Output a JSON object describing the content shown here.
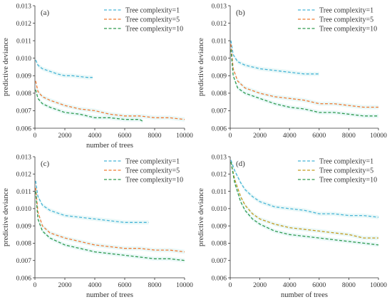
{
  "colors": {
    "complexity_1": "#46b4d6",
    "complexity_5": "#f07a32",
    "complexity_5_alt": "#c49a1c",
    "complexity_10": "#2e9a4e",
    "axis": "#333333",
    "band": "#d8f3f3"
  },
  "chart_data": [
    {
      "type": "line",
      "panel_label": "(a)",
      "xlabel": "number of trees",
      "ylabel": "predictive deviance",
      "xlim": [
        0,
        10000
      ],
      "ylim": [
        0.006,
        0.013
      ],
      "xticks": [
        0,
        2000,
        4000,
        6000,
        8000,
        10000
      ],
      "yticks": [
        0.006,
        0.007,
        0.008,
        0.009,
        0.01,
        0.011,
        0.012,
        0.013
      ],
      "grid": false,
      "legend": "top-right",
      "series": [
        {
          "name": "Tree complexity=1",
          "color_key": "complexity_1",
          "x": [
            50,
            200,
            500,
            1000,
            1500,
            2000,
            2500,
            3000,
            3500,
            3850
          ],
          "y": [
            0.0099,
            0.0096,
            0.0094,
            0.00925,
            0.0091,
            0.009,
            0.009,
            0.00895,
            0.0089,
            0.0089
          ]
        },
        {
          "name": "Tree complexity=5",
          "color_key": "complexity_5",
          "x": [
            50,
            200,
            500,
            1000,
            2000,
            3000,
            4000,
            5000,
            6000,
            7000,
            8000,
            9000,
            10000
          ],
          "y": [
            0.0087,
            0.0081,
            0.0078,
            0.0076,
            0.0073,
            0.0071,
            0.007,
            0.0068,
            0.0067,
            0.0067,
            0.0066,
            0.0066,
            0.0065
          ]
        },
        {
          "name": "Tree complexity=10",
          "color_key": "complexity_10",
          "x": [
            50,
            200,
            500,
            1000,
            2000,
            3000,
            4000,
            5000,
            6000,
            7000,
            7200
          ],
          "y": [
            0.0082,
            0.0077,
            0.0074,
            0.0072,
            0.0069,
            0.0068,
            0.0066,
            0.0066,
            0.0065,
            0.0065,
            0.0064
          ]
        }
      ]
    },
    {
      "type": "line",
      "panel_label": "(b)",
      "xlabel": "",
      "ylabel": "predictive deviance",
      "xlim": [
        0,
        10000
      ],
      "ylim": [
        0.006,
        0.013
      ],
      "xticks": [
        0,
        2000,
        4000,
        6000,
        8000,
        10000
      ],
      "yticks": [
        0.006,
        0.007,
        0.008,
        0.009,
        0.01,
        0.011,
        0.012,
        0.013
      ],
      "grid": false,
      "legend": "top-right",
      "series": [
        {
          "name": "Tree complexity=1",
          "color_key": "complexity_1",
          "x": [
            50,
            200,
            500,
            1000,
            1500,
            2000,
            3000,
            4000,
            5000,
            6000
          ],
          "y": [
            0.011,
            0.0102,
            0.0098,
            0.0096,
            0.0095,
            0.0094,
            0.0093,
            0.0092,
            0.0091,
            0.0091
          ]
        },
        {
          "name": "Tree complexity=5",
          "color_key": "complexity_5",
          "x": [
            50,
            200,
            500,
            1000,
            2000,
            3000,
            4000,
            5000,
            6000,
            7000,
            8000,
            9000,
            10000
          ],
          "y": [
            0.0108,
            0.0094,
            0.0087,
            0.0083,
            0.008,
            0.0078,
            0.0077,
            0.0076,
            0.0074,
            0.0074,
            0.0073,
            0.0072,
            0.0072
          ]
        },
        {
          "name": "Tree complexity=10",
          "color_key": "complexity_10",
          "x": [
            50,
            200,
            500,
            1000,
            2000,
            3000,
            4000,
            5000,
            6000,
            7000,
            8000,
            9000,
            10000
          ],
          "y": [
            0.0105,
            0.009,
            0.0083,
            0.008,
            0.0077,
            0.0074,
            0.0072,
            0.0071,
            0.0069,
            0.0069,
            0.0068,
            0.0067,
            0.0067
          ]
        }
      ]
    },
    {
      "type": "line",
      "panel_label": "(c)",
      "xlabel": "number of trees",
      "ylabel": "predictive deviance",
      "xlim": [
        0,
        10000
      ],
      "ylim": [
        0.006,
        0.013
      ],
      "xticks": [
        0,
        2000,
        4000,
        6000,
        8000,
        10000
      ],
      "yticks": [
        0.006,
        0.007,
        0.008,
        0.009,
        0.01,
        0.011,
        0.012,
        0.013
      ],
      "grid": false,
      "legend": "top-right",
      "series": [
        {
          "name": "Tree complexity=1",
          "color_key": "complexity_1",
          "x": [
            50,
            200,
            500,
            1000,
            2000,
            3000,
            4000,
            5000,
            6000,
            7000,
            7600
          ],
          "y": [
            0.0116,
            0.0107,
            0.0102,
            0.0099,
            0.0096,
            0.0095,
            0.0094,
            0.0093,
            0.0092,
            0.0092,
            0.0092
          ]
        },
        {
          "name": "Tree complexity=5",
          "color_key": "complexity_5",
          "x": [
            50,
            200,
            500,
            1000,
            2000,
            3000,
            4000,
            5000,
            6000,
            7000,
            8000,
            9000,
            10000
          ],
          "y": [
            0.0112,
            0.0098,
            0.009,
            0.0086,
            0.0083,
            0.0081,
            0.0079,
            0.0078,
            0.0077,
            0.0077,
            0.0076,
            0.0076,
            0.0075
          ]
        },
        {
          "name": "Tree complexity=10",
          "color_key": "complexity_10",
          "x": [
            50,
            200,
            500,
            1000,
            2000,
            3000,
            4000,
            5000,
            6000,
            7000,
            8000,
            9000,
            10000
          ],
          "y": [
            0.011,
            0.0094,
            0.0087,
            0.0083,
            0.0079,
            0.0077,
            0.0075,
            0.0074,
            0.0073,
            0.0072,
            0.0071,
            0.0071,
            0.007
          ]
        }
      ]
    },
    {
      "type": "line",
      "panel_label": "(d)",
      "xlabel": "number of trees",
      "ylabel": "predictive deviance",
      "xlim": [
        0,
        10000
      ],
      "ylim": [
        0.006,
        0.013
      ],
      "xticks": [
        0,
        2000,
        4000,
        6000,
        8000,
        10000
      ],
      "yticks": [
        0.006,
        0.007,
        0.008,
        0.009,
        0.01,
        0.011,
        0.012,
        0.013
      ],
      "grid": false,
      "legend": "top-right",
      "series": [
        {
          "name": "Tree complexity=1",
          "color_key": "complexity_1",
          "x": [
            50,
            300,
            700,
            1000,
            1500,
            2000,
            3000,
            4000,
            5000,
            6000,
            7000,
            8000,
            9000,
            10000
          ],
          "y": [
            0.0128,
            0.0122,
            0.0115,
            0.0111,
            0.0107,
            0.0104,
            0.0101,
            0.01,
            0.0099,
            0.0097,
            0.0097,
            0.0096,
            0.0096,
            0.0095
          ]
        },
        {
          "name": "Tree complexity=5",
          "color_key": "complexity_5_alt",
          "x": [
            50,
            300,
            700,
            1000,
            1500,
            2000,
            3000,
            4000,
            5000,
            6000,
            7000,
            8000,
            9000,
            10000
          ],
          "y": [
            0.0127,
            0.0117,
            0.0107,
            0.0102,
            0.0097,
            0.0094,
            0.0091,
            0.0089,
            0.0088,
            0.0087,
            0.0086,
            0.0085,
            0.0083,
            0.0083
          ]
        },
        {
          "name": "Tree complexity=10",
          "color_key": "complexity_10",
          "x": [
            50,
            300,
            700,
            1000,
            1500,
            2000,
            3000,
            4000,
            5000,
            6000,
            7000,
            8000,
            9000,
            10000
          ],
          "y": [
            0.0127,
            0.0115,
            0.0104,
            0.0099,
            0.0094,
            0.0091,
            0.0087,
            0.0085,
            0.0084,
            0.0083,
            0.0082,
            0.0081,
            0.008,
            0.0079
          ]
        }
      ]
    }
  ]
}
